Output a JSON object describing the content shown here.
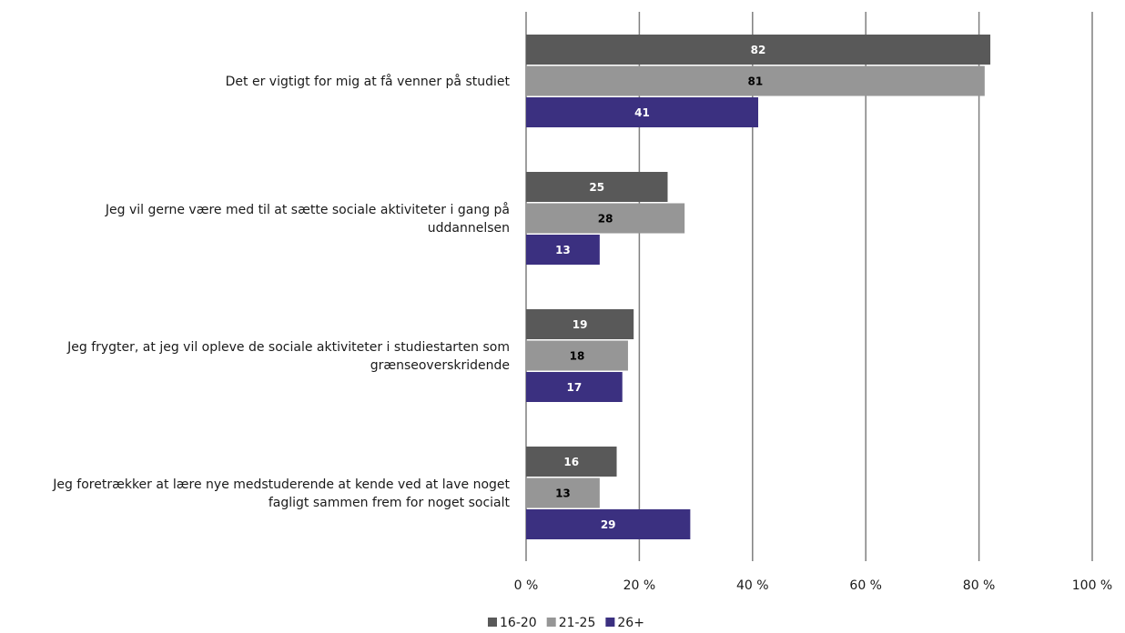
{
  "chart_data": {
    "type": "bar",
    "orientation": "horizontal",
    "categories": [
      "Det er vigtigt for mig at få venner på studiet",
      "Jeg vil gerne være med til at sætte sociale aktiviteter i gang på uddannelsen",
      "Jeg frygter, at jeg vil opleve de sociale aktiviteter i studiestarten som grænseoverskridende",
      "Jeg foretrækker at lære nye medstuderende at kende ved at lave noget fagligt sammen frem for noget socialt"
    ],
    "category_label_lines": [
      [
        "Det er vigtigt for mig at få venner på studiet"
      ],
      [
        "Jeg vil gerne være med til at sætte sociale aktiviteter i gang på",
        "uddannelsen"
      ],
      [
        "Jeg frygter, at jeg vil opleve de sociale aktiviteter i studiestarten som",
        "grænseoverskridende"
      ],
      [
        "Jeg foretrækker at lære nye medstuderende at kende ved at lave noget",
        "fagligt sammen frem for noget socialt"
      ]
    ],
    "series": [
      {
        "name": "16-20",
        "values": [
          82,
          25,
          19,
          16
        ],
        "color": "#595959",
        "label_color": "#ffffff"
      },
      {
        "name": "21-25",
        "values": [
          81,
          28,
          18,
          13
        ],
        "color": "#969696",
        "label_color": "#000000"
      },
      {
        "name": "26+",
        "values": [
          41,
          13,
          17,
          29
        ],
        "color": "#3b3080",
        "label_color": "#ffffff"
      }
    ],
    "xlim": [
      0,
      100
    ],
    "x_ticks": [
      0,
      20,
      40,
      60,
      80,
      100
    ],
    "tick_suffix": " %",
    "gridlines": "vertical",
    "grid_color": "#7f7f7f",
    "legend_position": "bottom-center",
    "title": "",
    "xlabel": "",
    "ylabel": ""
  }
}
